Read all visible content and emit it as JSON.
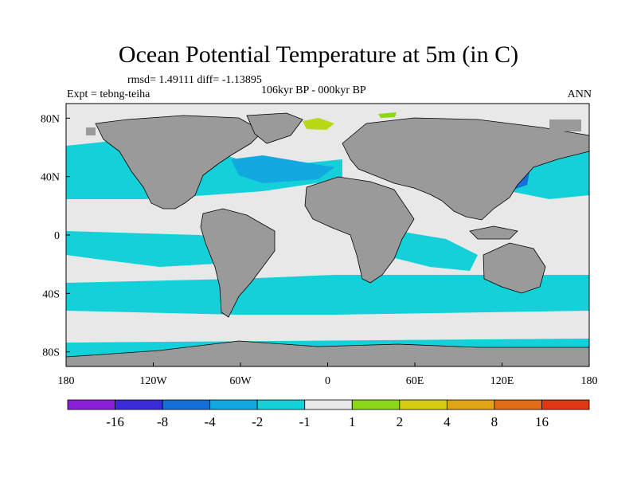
{
  "chart_data": {
    "type": "heatmap",
    "title": "Ocean Potential Temperature at 5m (in C)",
    "stats": "rmsd= 1.49111 diff= -1.13895",
    "expt": "Expt = tebng-teiha",
    "period": "106kyr BP - 000kyr BP",
    "season": "ANN",
    "x_ticks": [
      "180",
      "120W",
      "60W",
      "0",
      "60E",
      "120E",
      "180"
    ],
    "x_values": [
      -180,
      -120,
      -60,
      0,
      60,
      120,
      180
    ],
    "y_ticks": [
      "80N",
      "40N",
      "0",
      "40S",
      "80S"
    ],
    "y_values": [
      80,
      40,
      0,
      -40,
      -80
    ],
    "lon_range": [
      -180,
      180
    ],
    "lat_range": [
      -90,
      90
    ],
    "colorbar": {
      "labels": [
        "-16",
        "-8",
        "-4",
        "-2",
        "-1",
        "1",
        "2",
        "4",
        "8",
        "16"
      ],
      "colors": [
        "#8a1fd8",
        "#3a2ad8",
        "#1470d6",
        "#12a8e0",
        "#14d0d8",
        "#e8e8e8",
        "#8ad818",
        "#d6cc12",
        "#e0a416",
        "#e06c16",
        "#e03812"
      ]
    },
    "land_color": "#9a9a9a"
  }
}
